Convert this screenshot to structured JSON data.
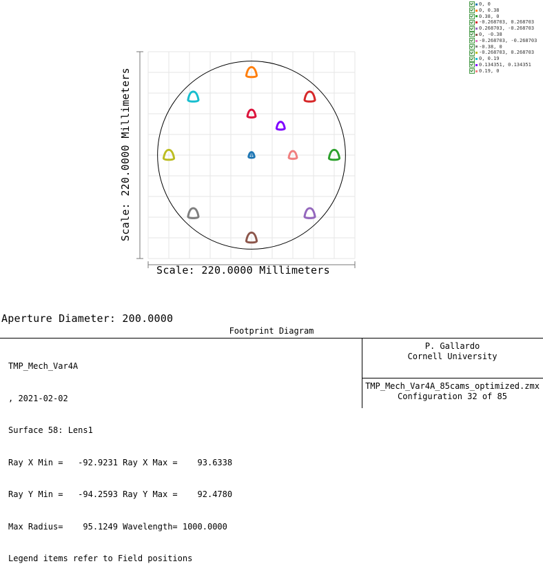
{
  "legend": {
    "items": [
      {
        "label": "0, 0",
        "color": "#1f77b4"
      },
      {
        "label": "0, 0.38",
        "color": "#ff7f0e"
      },
      {
        "label": "0.38, 0",
        "color": "#2ca02c"
      },
      {
        "label": "-0.268703, 0.268703",
        "color": "#d62728"
      },
      {
        "label": "0.268703, -0.268703",
        "color": "#9467bd"
      },
      {
        "label": "0, -0.38",
        "color": "#8c564b"
      },
      {
        "label": "-0.268703, -0.268703",
        "color": "#e377c2"
      },
      {
        "label": "-0.38, 0",
        "color": "#7f7f7f"
      },
      {
        "label": "-0.268703, 0.268703",
        "color": "#bcbd22"
      },
      {
        "label": "0, 0.19",
        "color": "#17becf"
      },
      {
        "label": "0.134351, 0.134351",
        "color": "#7f00ff"
      },
      {
        "label": "0.19, 0",
        "color": "#f08080"
      }
    ]
  },
  "chart_data": {
    "type": "scatter",
    "xlabel": "Scale: 220.0000 Millimeters",
    "ylabel": "Scale: 220.0000 Millimeters",
    "xlim": [
      -110,
      110
    ],
    "ylim": [
      -110,
      110
    ],
    "grid": true,
    "aperture_diameter": 200,
    "series": [
      {
        "name": "0, 0",
        "color": "#1f77b4",
        "x": 0,
        "y": 0,
        "marker": "cross-circle"
      },
      {
        "name": "0, 0.38",
        "color": "#ff7f0e",
        "x": 0,
        "y": 88
      },
      {
        "name": "0.38, 0",
        "color": "#2ca02c",
        "x": 88,
        "y": 0
      },
      {
        "name": "-0.268703, 0.268703",
        "color": "#d62728",
        "x": 62,
        "y": 62
      },
      {
        "name": "0.268703, -0.268703",
        "color": "#9467bd",
        "x": 62,
        "y": -62
      },
      {
        "name": "0, -0.38",
        "color": "#8c564b",
        "x": 0,
        "y": -88
      },
      {
        "name": "-0.268703, -0.268703",
        "color": "#7f7f7f",
        "x": -62,
        "y": -62
      },
      {
        "name": "-0.38, 0",
        "color": "#bcbd22",
        "x": -88,
        "y": 0
      },
      {
        "name": "-0.268703, 0.268703",
        "color": "#17becf",
        "x": -62,
        "y": 62
      },
      {
        "name": "0, 0.19",
        "color": "#dc143c",
        "x": 0,
        "y": 44
      },
      {
        "name": "0.134351, 0.134351",
        "color": "#7f00ff",
        "x": 31,
        "y": 31
      },
      {
        "name": "0.19, 0",
        "color": "#f08080",
        "x": 44,
        "y": 0
      }
    ]
  },
  "labels": {
    "scale_y": "Scale: 220.0000 Millimeters",
    "scale_x": "Scale: 220.0000 Millimeters",
    "aperture": "Aperture Diameter: 200.0000",
    "title": "Footprint Diagram"
  },
  "info": {
    "lines": [
      "TMP_Mech_Var4A",
      ", 2021-02-02",
      "Surface 58: Lens1",
      "Ray X Min =   -92.9231 Ray X Max =    93.6338",
      "Ray Y Min =   -94.2593 Ray Y Max =    92.4780",
      "Max Radius=    95.1249 Wavelength= 1000.0000",
      "Legend items refer to Field positions"
    ],
    "author": "P. Gallardo",
    "affiliation": "Cornell University",
    "filename": "TMP_Mech_Var4A_85cams_optimized.zmx",
    "configuration": "Configuration 32 of 85"
  }
}
